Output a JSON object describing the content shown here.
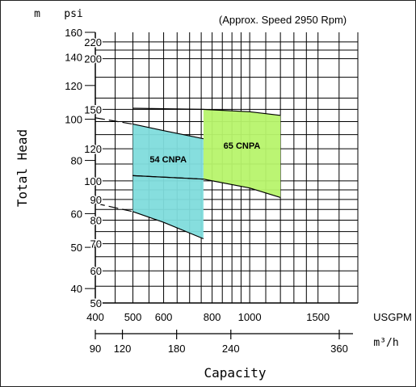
{
  "chart_data": {
    "type": "area",
    "annotation": "(Approx. Speed 2950 Rpm)",
    "ylabel": "Total Head",
    "xlabel": "Capacity",
    "left_axis": {
      "unit": "m",
      "ticks": [
        40,
        50,
        60,
        80,
        100,
        120,
        140,
        160
      ],
      "range": [
        37,
        160
      ],
      "scale": "log"
    },
    "right_axis": {
      "unit": "psi",
      "ticks": [
        50,
        60,
        70,
        80,
        90,
        100,
        120,
        150,
        200,
        220
      ],
      "range": [
        50,
        225
      ],
      "scale": "log"
    },
    "x_axis_top": {
      "unit": "USGPM",
      "ticks": [
        400,
        500,
        600,
        800,
        1000,
        1500
      ],
      "range": [
        400,
        1900
      ],
      "scale": "log"
    },
    "x_axis_bottom": {
      "unit": "m³/h",
      "ticks": [
        90,
        120,
        180,
        240,
        360
      ]
    },
    "grid": true,
    "series": [
      {
        "name": "54 CNPA",
        "color": "#7fdcdc",
        "x_range_usgpm": [
          500,
          760
        ],
        "top_curve_psi": [
          [
            500,
            138
          ],
          [
            600,
            133
          ],
          [
            760,
            127
          ]
        ],
        "bottom_curve_psi": [
          [
            500,
            84
          ],
          [
            600,
            79
          ],
          [
            760,
            72
          ]
        ],
        "upper_extension_psi": [
          [
            400,
            143
          ],
          [
            500,
            138
          ]
        ],
        "lower_extension_psi": [
          [
            400,
            88
          ],
          [
            500,
            84
          ]
        ],
        "inner_curve_psi": [
          [
            500,
            103
          ],
          [
            760,
            101
          ]
        ]
      },
      {
        "name": "65 CNPA",
        "color": "#b7f46b",
        "x_range_usgpm": [
          760,
          1200
        ],
        "top_curve_psi": [
          [
            500,
            151
          ],
          [
            760,
            150
          ],
          [
            1000,
            148
          ],
          [
            1200,
            145
          ]
        ],
        "bottom_curve_psi": [
          [
            760,
            101
          ],
          [
            1000,
            96
          ],
          [
            1200,
            91
          ]
        ],
        "lower_extension_psi": [
          [
            500,
            103
          ],
          [
            760,
            101
          ]
        ]
      }
    ]
  }
}
